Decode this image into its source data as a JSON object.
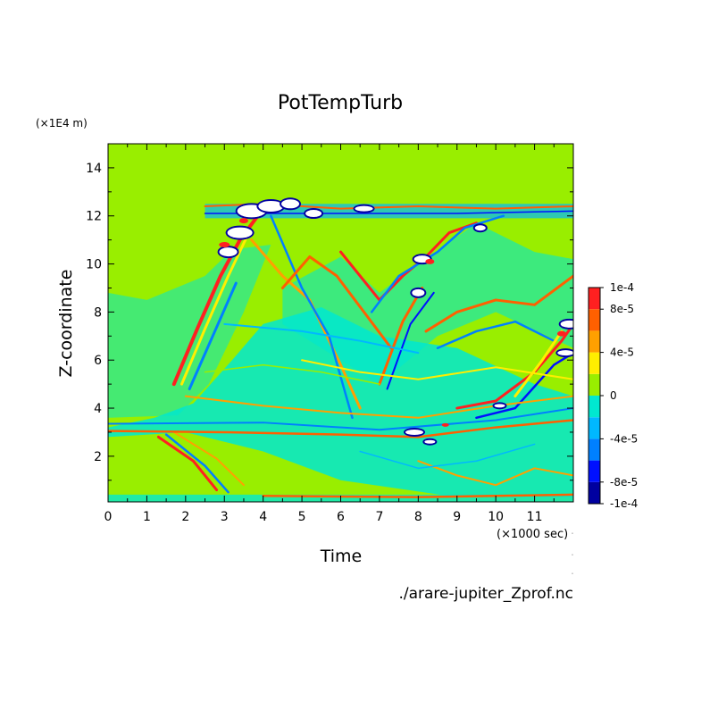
{
  "chart_data": {
    "type": "heatmap",
    "title": "PotTempTurb",
    "xlabel": "Time",
    "ylabel": "Z-coordinate",
    "x_unit": "(×1000 sec)",
    "y_unit": "(×1E4 m)",
    "xlim": [
      0,
      12
    ],
    "ylim": [
      0.1,
      15
    ],
    "x_ticks": [
      "0",
      "1",
      "2",
      "3",
      "4",
      "5",
      "6",
      "7",
      "8",
      "9",
      "10",
      "11"
    ],
    "y_ticks": [
      "2",
      "4",
      "6",
      "8",
      "10",
      "12",
      "14"
    ],
    "colorbar": {
      "labels": [
        "1e-4",
        "8e-5",
        "4e-5",
        "0",
        "-4e-5",
        "-8e-5",
        "-1e-4"
      ],
      "levels": [
        -0.0001,
        -8e-05,
        -6e-05,
        -4e-05,
        -2e-05,
        0,
        2e-05,
        4e-05,
        6e-05,
        8e-05,
        0.0001
      ],
      "colors": [
        "#0000a0",
        "#0010ff",
        "#0080ff",
        "#00b8ff",
        "#00e8d0",
        "#99ee00",
        "#ffee00",
        "#ffa000",
        "#ff6000",
        "#ff2020"
      ]
    },
    "background_color": "#99ee00",
    "footnote": "./arare-jupiter_Zprof.nc"
  }
}
